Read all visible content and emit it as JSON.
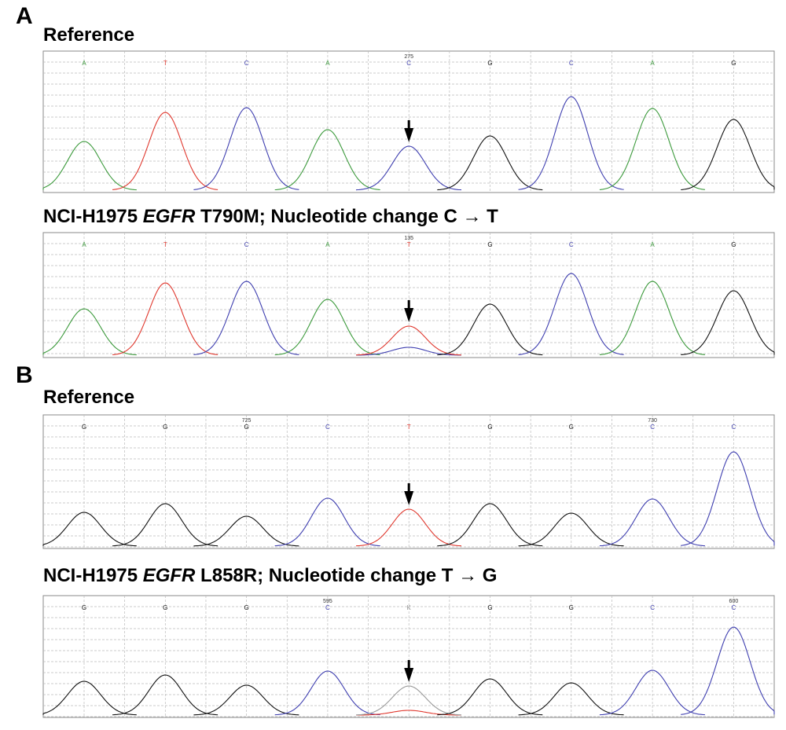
{
  "sections": [
    {
      "label": "A",
      "tracks": [
        {
          "title": {
            "text": "Reference"
          },
          "calls": [
            "A",
            "T",
            "C",
            "A",
            "C",
            "G",
            "C",
            "A",
            "G"
          ],
          "positions": [
            null,
            null,
            null,
            null,
            "275",
            null,
            null,
            null,
            null
          ],
          "peaks": [
            62,
            99,
            105,
            77,
            56,
            69,
            119,
            104,
            90
          ],
          "secondary": [
            null,
            null,
            null,
            null,
            null,
            null,
            null,
            null,
            null
          ]
        },
        {
          "title": {
            "before": "NCI-H1975 ",
            "gene": "EGFR",
            "after": " T790M; Nucleotide change C → T"
          },
          "calls": [
            "A",
            "T",
            "C",
            "A",
            "T",
            "G",
            "C",
            "A",
            "G"
          ],
          "positions": [
            null,
            null,
            null,
            null,
            "135",
            null,
            null,
            null,
            null
          ],
          "peaks": [
            59,
            92,
            94,
            71,
            37,
            65,
            104,
            94,
            82
          ],
          "secondary": [
            null,
            null,
            null,
            null,
            {
              "base": "C",
              "height": 10
            },
            null,
            null,
            null,
            null
          ]
        }
      ]
    },
    {
      "label": "B",
      "tracks": [
        {
          "title": {
            "text": "Reference"
          },
          "calls": [
            "G",
            "G",
            "G",
            "C",
            "T",
            "G",
            "G",
            "C",
            "C"
          ],
          "positions": [
            null,
            null,
            "725",
            null,
            null,
            null,
            null,
            "730",
            null
          ],
          "peaks": [
            43,
            54,
            38,
            61,
            47,
            54,
            42,
            60,
            120
          ],
          "secondary": [
            null,
            null,
            null,
            null,
            null,
            null,
            null,
            null,
            null
          ]
        },
        {
          "title": {
            "before": "NCI-H1975 ",
            "gene": "EGFR",
            "after": " L858R; Nucleotide change T → G"
          },
          "calls": [
            "G",
            "G",
            "G",
            "C",
            "K",
            "G",
            "G",
            "C",
            "C"
          ],
          "positions": [
            null,
            null,
            null,
            "595",
            null,
            null,
            null,
            null,
            "600"
          ],
          "peaks": [
            43,
            51,
            38,
            56,
            37,
            46,
            41,
            57,
            112
          ],
          "secondary": [
            null,
            null,
            null,
            null,
            {
              "base": "T",
              "height": 6
            },
            null,
            null,
            null,
            null
          ]
        }
      ]
    }
  ]
}
